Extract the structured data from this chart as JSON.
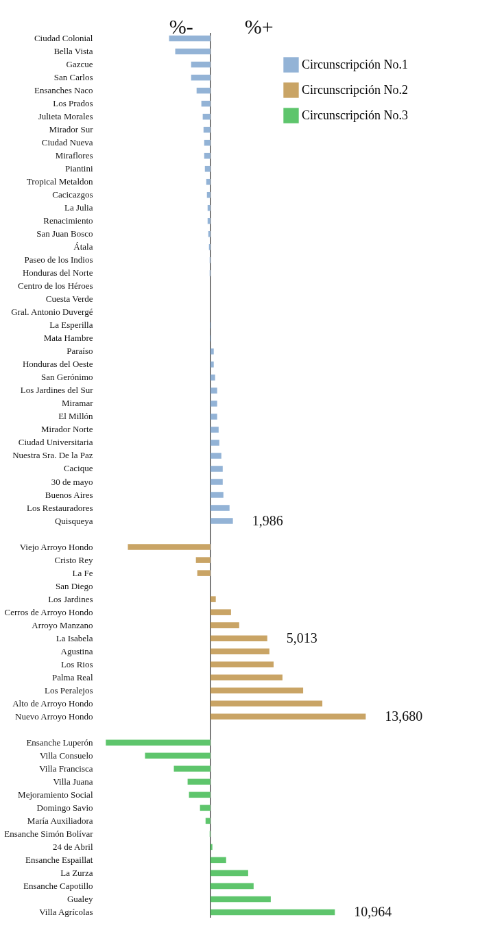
{
  "chart_data": {
    "type": "bar",
    "orientation": "horizontal",
    "categories": [
      "Ciudad Colonial",
      "Bella Vista",
      "Gazcue",
      "San Carlos",
      "Ensanches Naco",
      "Los Prados",
      "Julieta Morales",
      "Mirador Sur",
      "Ciudad Nueva",
      "Miraflores",
      "Piantini",
      "Tropical Metaldon",
      "Cacicazgos",
      "La Julia",
      "Renacimiento",
      "San Juan Bosco",
      "Átala",
      "Paseo de los Indios",
      "Honduras del Norte",
      "Centro de los Héroes",
      "Cuesta Verde",
      "Gral. Antonio Duvergé",
      "La Esperilla",
      "Mata Hambre",
      "Paraíso",
      "Honduras del Oeste",
      "San Gerónimo",
      "Los Jardines del Sur",
      "Miramar",
      "El Millón",
      "Mirador Norte",
      "Ciudad Universitaria",
      "Nuestra Sra. De la Paz",
      "Cacique",
      "30 de mayo",
      "Buenos Aires",
      "Los Restauradores",
      "Quisqueya",
      null,
      "Viejo Arroyo Hondo",
      "Cristo Rey",
      "La Fe",
      "San Diego",
      "Los Jardines",
      "Cerros de Arroyo Hondo",
      "Arroyo Manzano",
      "La Isabela",
      "Agustina",
      "Los Rios",
      "Palma Real",
      "Los Peralejos",
      "Alto de Arroyo Hondo",
      "Nuevo Arroyo Hondo",
      null,
      "Ensanche Luperón",
      "Villa Consuelo",
      "Villa Francisca",
      "Villa Juana",
      "Mejoramiento Social",
      "Domingo Savio",
      "María Auxiliadora",
      "Ensanche Simón Bolívar",
      "24 de Abril",
      "Ensanche Espaillat",
      "La Zurza",
      "Ensanche Capotillo",
      "Gualey",
      "Villa Agrícolas"
    ],
    "series": [
      {
        "name": "Circunscripción No.1",
        "color": "#93b3d6",
        "values": [
          -3630,
          -3090,
          -1690,
          -1690,
          -1210,
          -790,
          -670,
          -600,
          -540,
          -540,
          -480,
          -360,
          -300,
          -240,
          -240,
          -180,
          -120,
          -60,
          -60,
          0,
          0,
          0,
          60,
          60,
          300,
          300,
          420,
          600,
          600,
          600,
          730,
          790,
          970,
          1090,
          1090,
          1150,
          1690,
          1986,
          null,
          null,
          null,
          null,
          null,
          null,
          null,
          null,
          null,
          null,
          null,
          null,
          null,
          null,
          null,
          null,
          null,
          null,
          null,
          null,
          null,
          null,
          null,
          null,
          null,
          null,
          null,
          null,
          null,
          null
        ],
        "value_labels": [
          null,
          null,
          null,
          null,
          null,
          null,
          null,
          null,
          null,
          null,
          null,
          null,
          null,
          null,
          null,
          null,
          null,
          null,
          null,
          null,
          null,
          null,
          null,
          null,
          null,
          null,
          null,
          null,
          null,
          null,
          null,
          null,
          null,
          null,
          null,
          null,
          null,
          "1,986",
          null,
          null,
          null,
          null,
          null,
          null,
          null,
          null,
          null,
          null,
          null,
          null,
          null,
          null,
          null,
          null,
          null,
          null,
          null,
          null,
          null,
          null,
          null,
          null,
          null,
          null,
          null,
          null,
          null,
          null
        ]
      },
      {
        "name": "Circunscripción No.2",
        "color": "#c9a465",
        "values": [
          null,
          null,
          null,
          null,
          null,
          null,
          null,
          null,
          null,
          null,
          null,
          null,
          null,
          null,
          null,
          null,
          null,
          null,
          null,
          null,
          null,
          null,
          null,
          null,
          null,
          null,
          null,
          null,
          null,
          null,
          null,
          null,
          null,
          null,
          null,
          null,
          null,
          null,
          null,
          -7260,
          -1270,
          -1150,
          0,
          480,
          1820,
          2540,
          5013,
          5200,
          5570,
          6350,
          8170,
          9860,
          13680,
          null,
          null,
          null,
          null,
          null,
          null,
          null,
          null,
          null,
          null,
          null,
          null,
          null,
          null,
          null
        ],
        "value_labels": [
          null,
          null,
          null,
          null,
          null,
          null,
          null,
          null,
          null,
          null,
          null,
          null,
          null,
          null,
          null,
          null,
          null,
          null,
          null,
          null,
          null,
          null,
          null,
          null,
          null,
          null,
          null,
          null,
          null,
          null,
          null,
          null,
          null,
          null,
          null,
          null,
          null,
          null,
          null,
          null,
          null,
          null,
          null,
          null,
          null,
          null,
          "5,013",
          null,
          null,
          null,
          null,
          null,
          "13,680",
          null,
          null,
          null,
          null,
          null,
          null,
          null,
          null,
          null,
          null,
          null,
          null,
          null,
          null,
          null
        ]
      },
      {
        "name": "Circunscripción No.3",
        "color": "#5ec56c",
        "values": [
          null,
          null,
          null,
          null,
          null,
          null,
          null,
          null,
          null,
          null,
          null,
          null,
          null,
          null,
          null,
          null,
          null,
          null,
          null,
          null,
          null,
          null,
          null,
          null,
          null,
          null,
          null,
          null,
          null,
          null,
          null,
          null,
          null,
          null,
          null,
          null,
          null,
          null,
          null,
          null,
          null,
          null,
          null,
          null,
          null,
          null,
          null,
          null,
          null,
          null,
          null,
          null,
          null,
          null,
          -9200,
          -5750,
          -3210,
          -2000,
          -1880,
          -910,
          -420,
          -60,
          180,
          1390,
          3330,
          3810,
          5320,
          10964
        ],
        "value_labels": [
          null,
          null,
          null,
          null,
          null,
          null,
          null,
          null,
          null,
          null,
          null,
          null,
          null,
          null,
          null,
          null,
          null,
          null,
          null,
          null,
          null,
          null,
          null,
          null,
          null,
          null,
          null,
          null,
          null,
          null,
          null,
          null,
          null,
          null,
          null,
          null,
          null,
          null,
          null,
          null,
          null,
          null,
          null,
          null,
          null,
          null,
          null,
          null,
          null,
          null,
          null,
          null,
          null,
          null,
          null,
          null,
          null,
          null,
          null,
          null,
          null,
          null,
          null,
          null,
          null,
          null,
          null,
          "10,964"
        ]
      }
    ],
    "annotations": [
      "%-",
      "%+"
    ],
    "ref_lines": [
      {
        "axis": "x",
        "value": 0,
        "color": "#000000"
      }
    ],
    "legend": "top right",
    "grid": false
  }
}
